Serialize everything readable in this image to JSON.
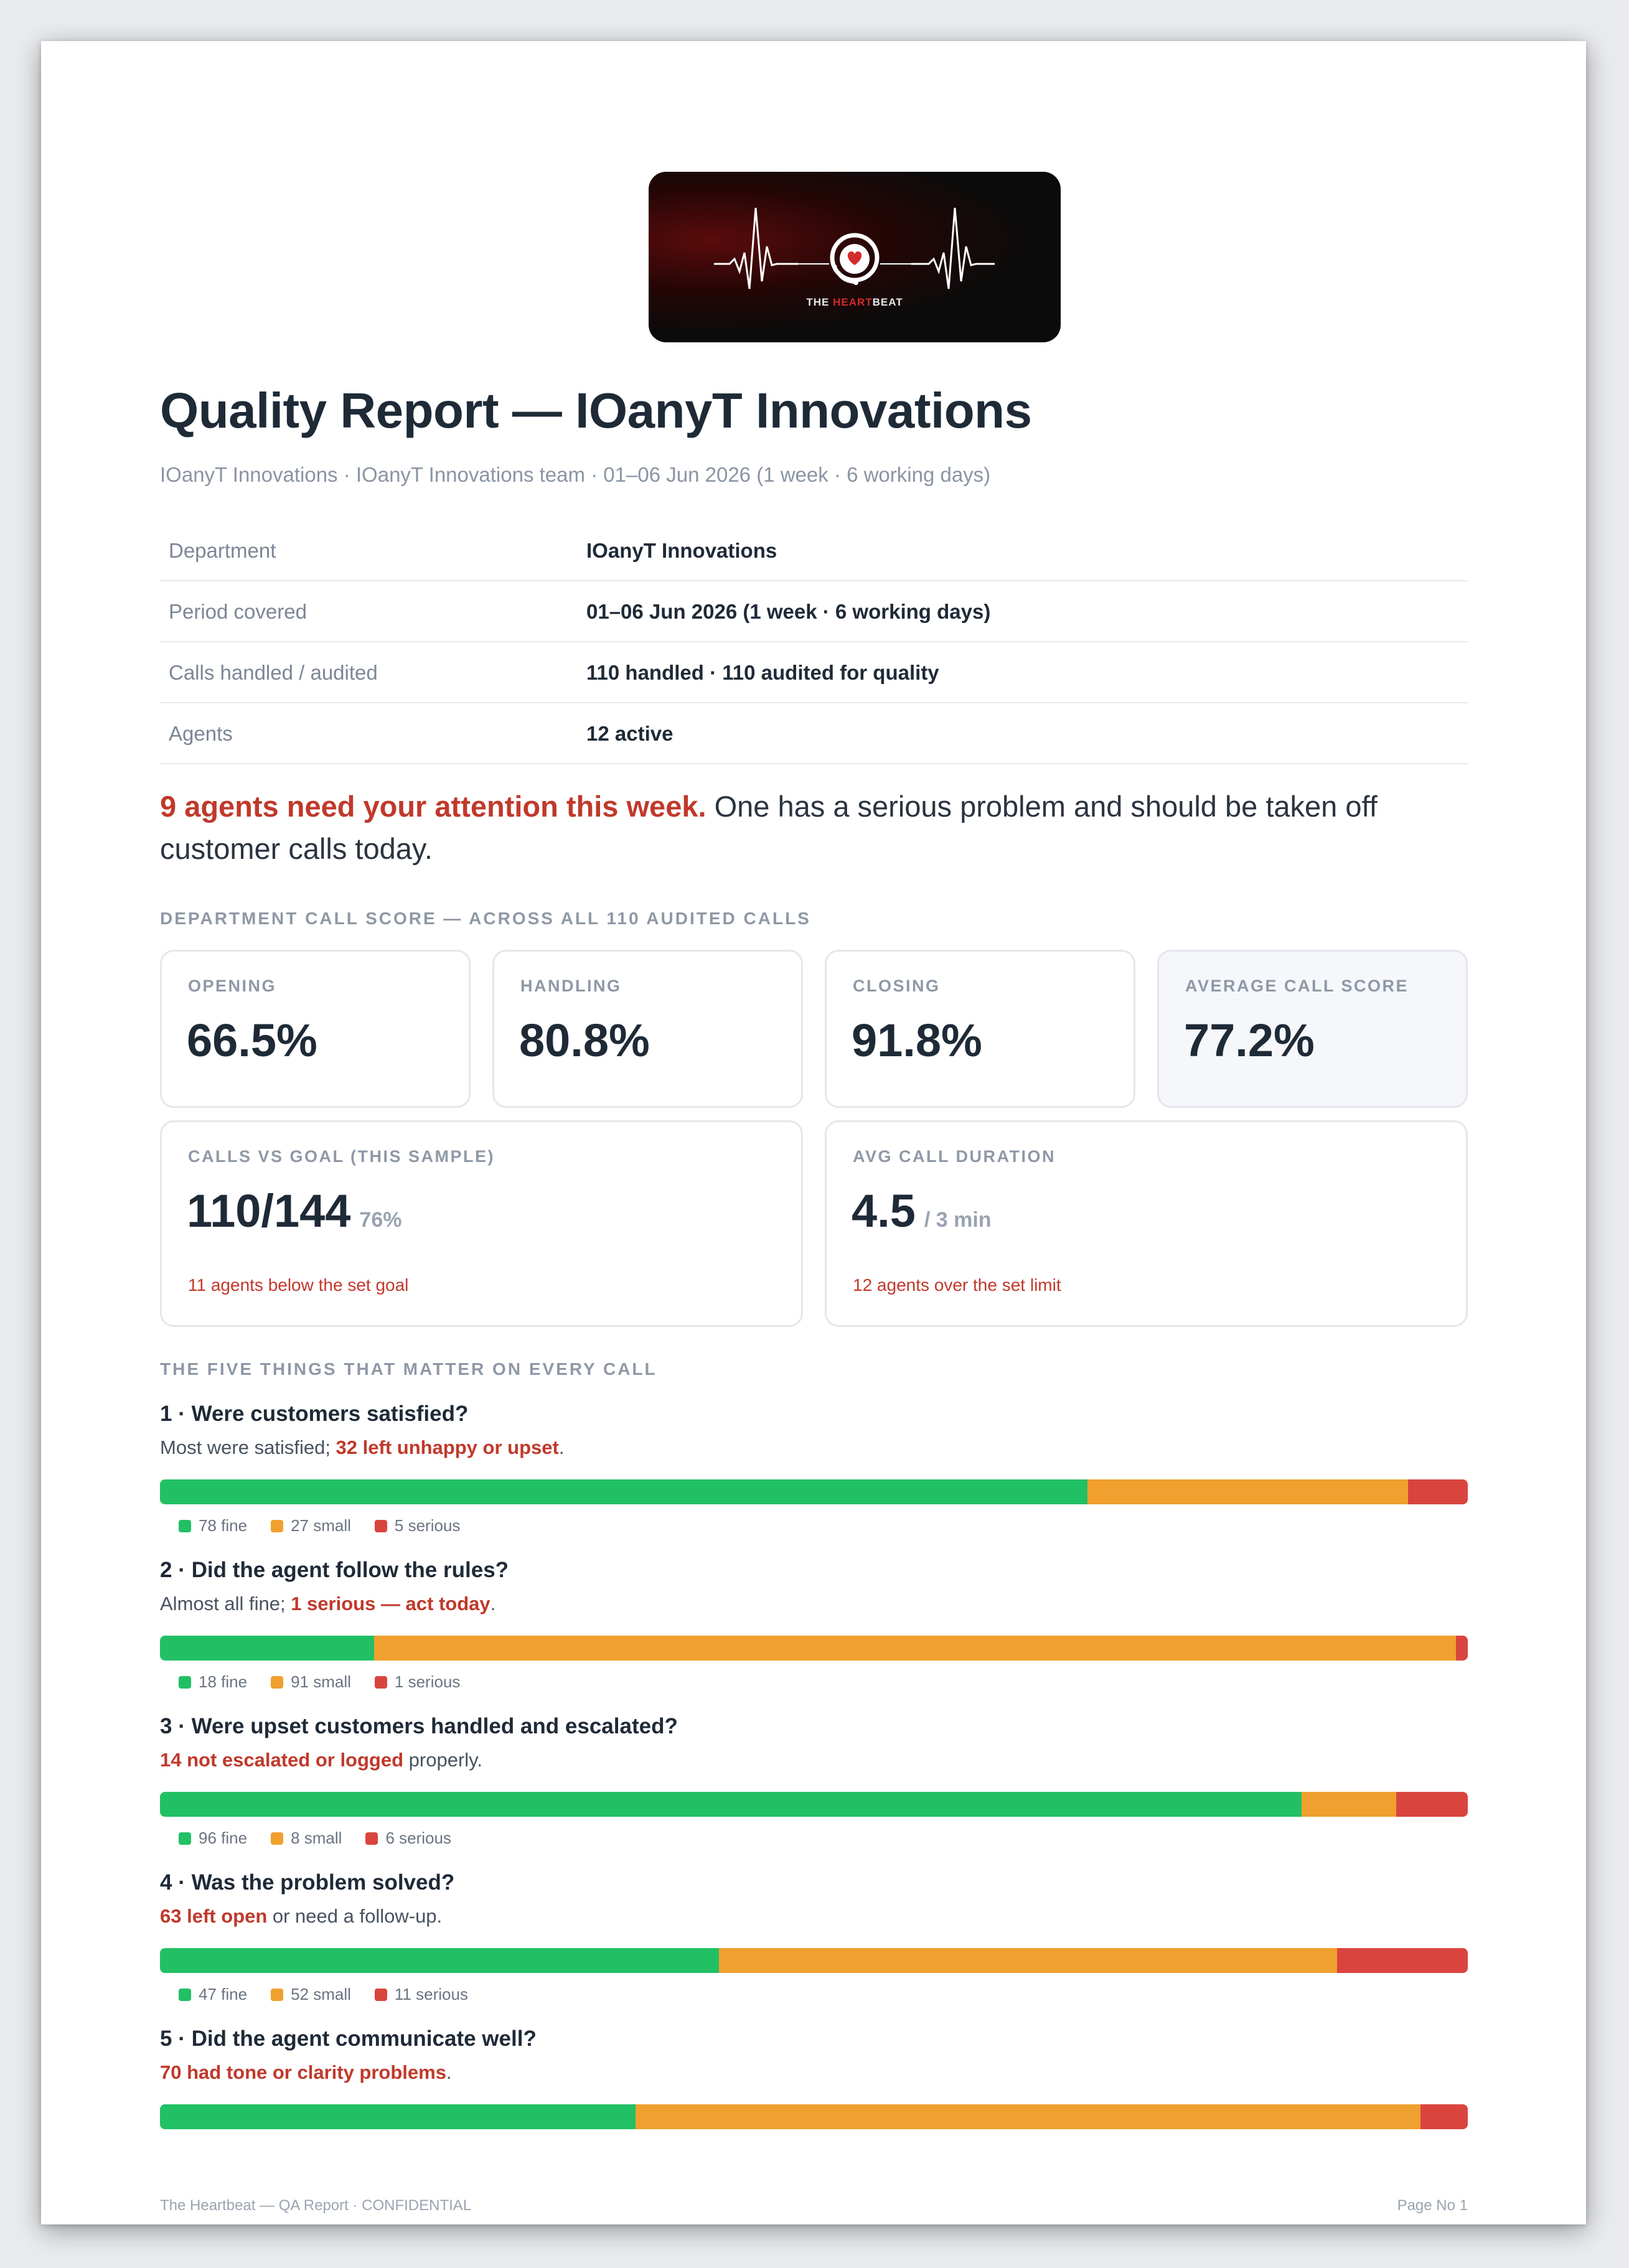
{
  "logo": {
    "pre": "THE ",
    "highlight": "HEART",
    "post": "BEAT"
  },
  "title": "Quality Report — IOanyT Innovations",
  "subtitle": "IOanyT Innovations · IOanyT Innovations team · 01–06 Jun 2026 (1 week · 6 working days)",
  "meta": [
    {
      "key": "Department",
      "value": "IOanyT Innovations"
    },
    {
      "key": "Period covered",
      "value": "01–06 Jun 2026 (1 week · 6 working days)"
    },
    {
      "key": "Calls handled / audited",
      "value": "110 handled · 110 audited for quality"
    },
    {
      "key": "Agents",
      "value": "12 active"
    }
  ],
  "alert": {
    "strong": "9 agents need your attention this week.",
    "rest": " One has a serious problem and should be taken off customer calls today."
  },
  "score_section_label": "DEPARTMENT CALL SCORE — ACROSS ALL 110 AUDITED CALLS",
  "scores": [
    {
      "label": "OPENING",
      "value": "66.5%"
    },
    {
      "label": "HANDLING",
      "value": "80.8%"
    },
    {
      "label": "CLOSING",
      "value": "91.8%"
    },
    {
      "label": "AVERAGE CALL SCORE",
      "value": "77.2%"
    }
  ],
  "goal_card": {
    "label": "CALLS VS GOAL (THIS SAMPLE)",
    "value": "110/144",
    "sub": "76%",
    "note": "11 agents below the set goal"
  },
  "duration_card": {
    "label": "AVG CALL DURATION",
    "value": "4.5",
    "sub": "/ 3 min",
    "note": "12 agents over the set limit"
  },
  "things_label": "THE FIVE THINGS THAT MATTER ON EVERY CALL",
  "things": [
    {
      "question": "1 · Were customers satisfied?",
      "pre": "Most were satisfied; ",
      "red": "32 left unhappy or upset",
      "post": ".",
      "fine": 78,
      "small": 27,
      "serious": 5,
      "fine_label": "78 fine",
      "small_label": "27 small",
      "serious_label": "5 serious"
    },
    {
      "question": "2 · Did the agent follow the rules?",
      "pre": "Almost all fine; ",
      "red": "1 serious — act today",
      "post": ".",
      "fine": 18,
      "small": 91,
      "serious": 1,
      "fine_label": "18 fine",
      "small_label": "91 small",
      "serious_label": "1 serious"
    },
    {
      "question": "3 · Were upset customers handled and escalated?",
      "pre": "",
      "red": "14 not escalated or logged",
      "post": " properly.",
      "fine": 96,
      "small": 8,
      "serious": 6,
      "fine_label": "96 fine",
      "small_label": "8 small",
      "serious_label": "6 serious"
    },
    {
      "question": "4 · Was the problem solved?",
      "pre": "",
      "red": "63 left open",
      "post": " or need a follow-up.",
      "fine": 47,
      "small": 52,
      "serious": 11,
      "fine_label": "47 fine",
      "small_label": "52 small",
      "serious_label": "11 serious"
    },
    {
      "question": "5 · Did the agent communicate well?",
      "pre": "",
      "red": "70 had tone or clarity problems",
      "post": ".",
      "fine": 40,
      "small": 66,
      "serious": 4
    }
  ],
  "footer": {
    "left": "The Heartbeat — QA Report · CONFIDENTIAL",
    "right": "Page No 1"
  },
  "colors": {
    "fine": "#22c065",
    "small": "#f0a02e",
    "serious": "#d9453e",
    "alert_red": "#c0392b"
  }
}
